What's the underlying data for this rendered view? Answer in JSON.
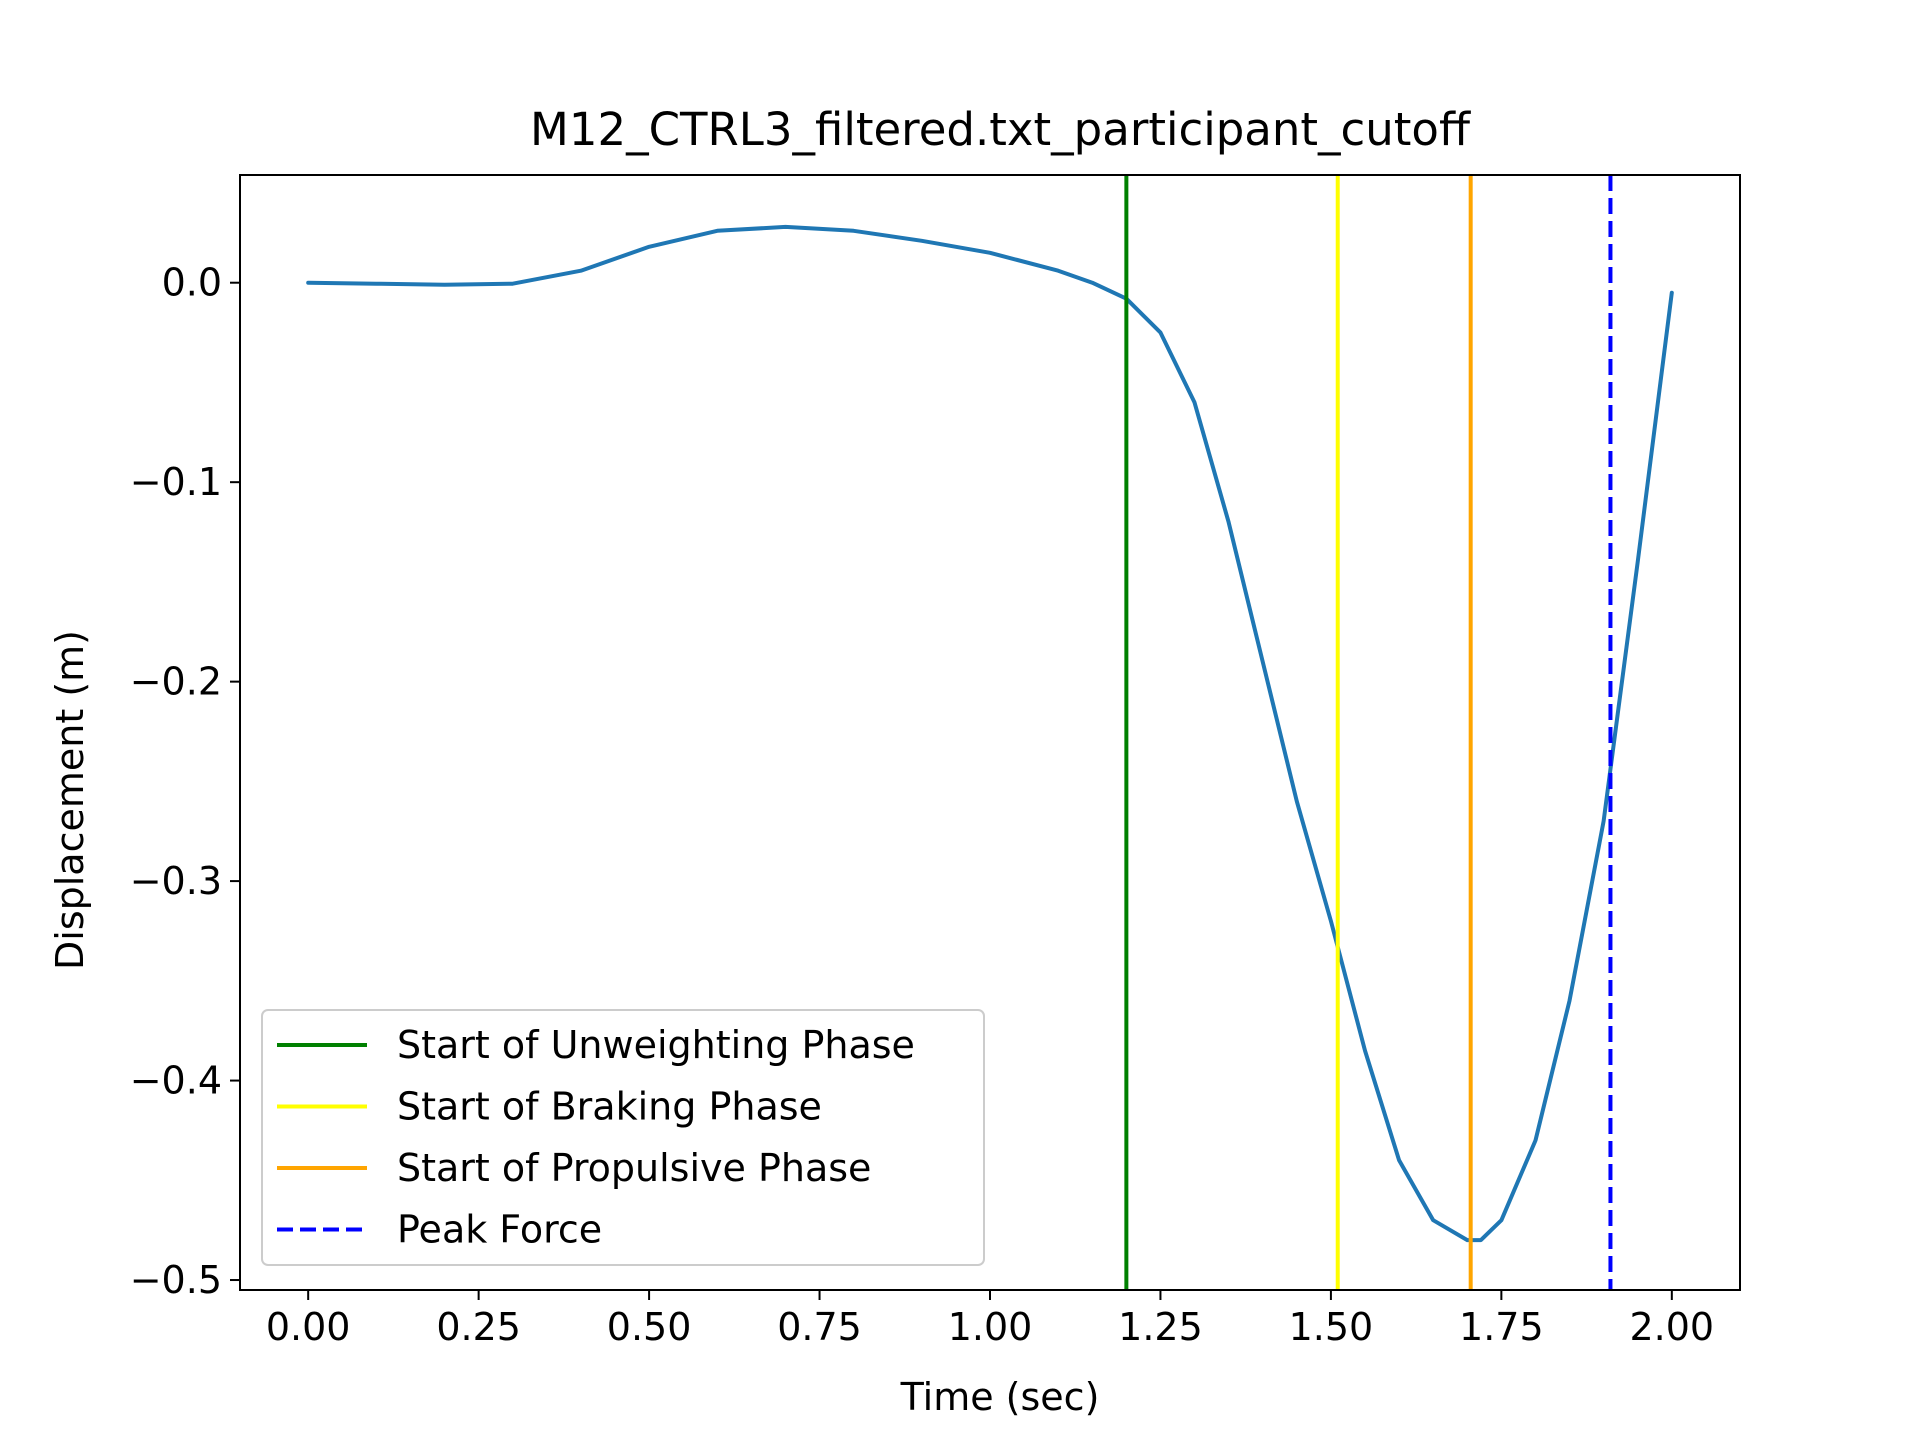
{
  "chart_data": {
    "type": "line",
    "title": "M12_CTRL3_filtered.txt_participant_cutoff",
    "xlabel": "Time (sec)",
    "ylabel": "Displacement (m)",
    "xlim": [
      -0.1,
      2.1
    ],
    "ylim": [
      -0.505,
      0.054
    ],
    "xticks": [
      0.0,
      0.25,
      0.5,
      0.75,
      1.0,
      1.25,
      1.5,
      1.75,
      2.0
    ],
    "xtick_labels": [
      "0.00",
      "0.25",
      "0.50",
      "0.75",
      "1.00",
      "1.25",
      "1.50",
      "1.75",
      "2.00"
    ],
    "yticks": [
      0.0,
      -0.1,
      -0.2,
      -0.3,
      -0.4,
      -0.5
    ],
    "ytick_labels": [
      "0.0",
      "−0.1",
      "−0.2",
      "−0.3",
      "−0.4",
      "−0.5"
    ],
    "grid": false,
    "legend_position": "lower-left",
    "series": [
      {
        "color": "#1f77b4",
        "x": [
          0.0,
          0.1,
          0.2,
          0.3,
          0.4,
          0.5,
          0.6,
          0.7,
          0.8,
          0.9,
          1.0,
          1.1,
          1.15,
          1.2,
          1.25,
          1.3,
          1.35,
          1.4,
          1.45,
          1.5,
          1.55,
          1.6,
          1.65,
          1.7,
          1.72,
          1.75,
          1.8,
          1.85,
          1.9,
          1.95,
          2.0
        ],
        "y": [
          0.0,
          -0.0005,
          -0.001,
          -0.0005,
          0.006,
          0.018,
          0.026,
          0.028,
          0.026,
          0.021,
          0.015,
          0.006,
          0.0,
          -0.008,
          -0.025,
          -0.06,
          -0.12,
          -0.19,
          -0.26,
          -0.32,
          -0.385,
          -0.44,
          -0.47,
          -0.48,
          -0.48,
          -0.47,
          -0.43,
          -0.36,
          -0.27,
          -0.14,
          -0.005
        ]
      }
    ],
    "vlines": [
      {
        "name": "Start of Unweighting Phase",
        "x": 1.2,
        "color": "#008000",
        "style": "solid"
      },
      {
        "name": "Start of Braking Phase",
        "x": 1.51,
        "color": "#ffff00",
        "style": "solid"
      },
      {
        "name": "Start of Propulsive Phase",
        "x": 1.705,
        "color": "#ffa500",
        "style": "solid"
      },
      {
        "name": "Peak Force",
        "x": 1.91,
        "color": "#0000ff",
        "style": "dashed"
      }
    ]
  }
}
